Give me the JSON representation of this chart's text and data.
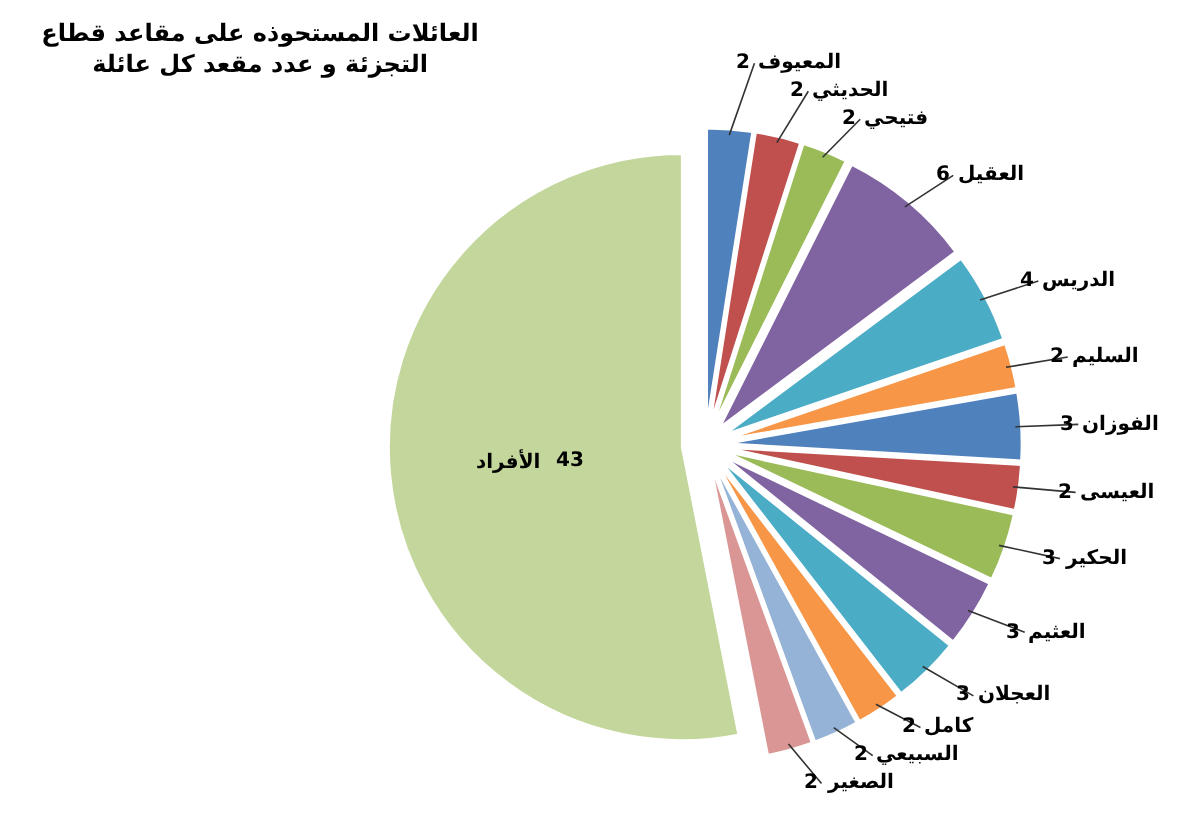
{
  "chart_data": {
    "type": "pie",
    "title": "العائلات المستحوذه على مقاعد قطاع\nالتجزئة و عدد مقعد كل عائلة",
    "categories": [
      "المعيوف",
      "الحديثي",
      "فتيحي",
      "العقيل",
      "الدريس",
      "السليم",
      "الفوزان",
      "العيسى",
      "الحكير",
      "العثيم",
      "العجلان",
      "كامل",
      "السبيعي",
      "الصغير",
      "الأفراد"
    ],
    "values": [
      2,
      2,
      2,
      6,
      4,
      2,
      3,
      2,
      3,
      3,
      3,
      2,
      2,
      2,
      43
    ],
    "colors": [
      "#4f81bd",
      "#c0504d",
      "#9bbb59",
      "#8064a2",
      "#4bacc6",
      "#f79646",
      "#4f81bd",
      "#c0504d",
      "#9bbb59",
      "#8064a2",
      "#4bacc6",
      "#f79646",
      "#95b3d7",
      "#d99694",
      "#c3d69b"
    ],
    "data_labels": true,
    "legend": false
  }
}
